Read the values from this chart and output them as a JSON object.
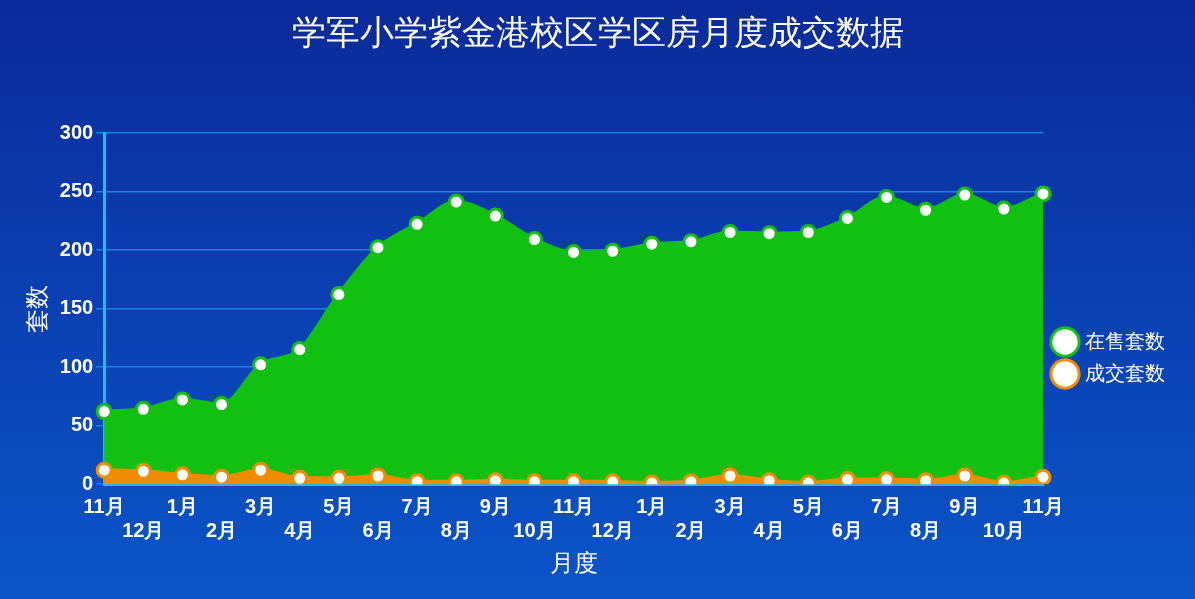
{
  "chart_data": {
    "type": "area",
    "title": "学军小学紫金港校区学区房月度成交数据",
    "xlabel": "月度",
    "ylabel": "套数",
    "categories": [
      "11月",
      "12月",
      "1月",
      "2月",
      "3月",
      "4月",
      "5月",
      "6月",
      "7月",
      "8月",
      "9月",
      "10月",
      "11月",
      "12月",
      "1月",
      "2月",
      "3月",
      "4月",
      "5月",
      "6月",
      "7月",
      "8月",
      "9月",
      "10月",
      "11月"
    ],
    "series": [
      {
        "name": "成交套数",
        "color": "#f08c00",
        "values": [
          12,
          11,
          8,
          6,
          12,
          5,
          5,
          7,
          2,
          2,
          3,
          2,
          2,
          2,
          1,
          2,
          7,
          3,
          1,
          4,
          4,
          3,
          7,
          1,
          6
        ]
      },
      {
        "name": "在售套数",
        "color": "#12c012",
        "values": [
          62,
          64,
          72,
          68,
          102,
          115,
          162,
          202,
          222,
          241,
          229,
          209,
          198,
          199,
          205,
          207,
          215,
          214,
          215,
          227,
          245,
          234,
          247,
          235,
          248
        ]
      }
    ],
    "ylim": [
      0,
      300
    ],
    "yticks": [
      0,
      50,
      100,
      150,
      200,
      250,
      300
    ],
    "grid": "y",
    "legend": "right",
    "marker": "circle"
  }
}
